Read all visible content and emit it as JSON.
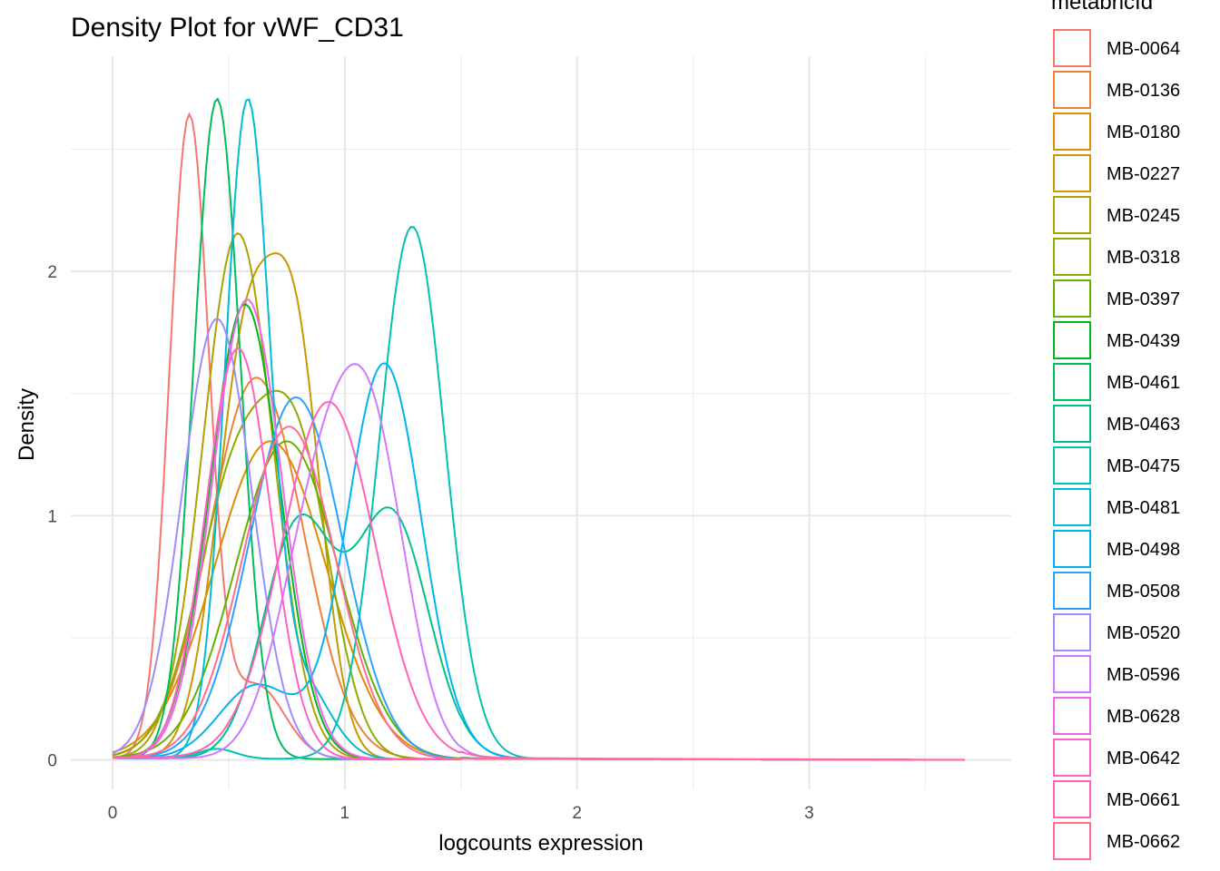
{
  "chart_data": {
    "type": "line",
    "title": "Density Plot for vWF_CD31",
    "xlabel": "logcounts expression",
    "ylabel": "Density",
    "xlim": [
      -0.18,
      3.87
    ],
    "ylim": [
      -0.12,
      2.88
    ],
    "x_ticks": [
      0,
      1,
      2,
      3
    ],
    "x_tick_labels": [
      "0",
      "1",
      "2",
      "3"
    ],
    "y_ticks": [
      0,
      1,
      2
    ],
    "y_tick_labels": [
      "0",
      "1",
      "2"
    ],
    "grid": true,
    "legend": {
      "title": "metabricId",
      "position": "right"
    },
    "series": [
      {
        "name": "MB-0064",
        "color": "#F8766D",
        "peaks": [
          [
            0.33,
            2.62,
            0.085
          ],
          [
            0.62,
            0.3,
            0.12
          ]
        ],
        "tail": 0.02
      },
      {
        "name": "MB-0136",
        "color": "#EC8239",
        "peaks": [
          [
            0.62,
            1.56,
            0.2
          ]
        ],
        "tail": 0.02
      },
      {
        "name": "MB-0180",
        "color": "#DB8E00",
        "peaks": [
          [
            0.68,
            1.3,
            0.24
          ]
        ],
        "tail": 0.02
      },
      {
        "name": "MB-0227",
        "color": "#C79800",
        "peaks": [
          [
            0.58,
            1.7,
            0.13
          ],
          [
            0.8,
            1.45,
            0.11
          ]
        ],
        "tail": 0.02
      },
      {
        "name": "MB-0245",
        "color": "#AEA200",
        "peaks": [
          [
            0.54,
            2.15,
            0.15
          ]
        ],
        "tail": 0.02
      },
      {
        "name": "MB-0318",
        "color": "#8FAA00",
        "peaks": [
          [
            0.55,
            1.2,
            0.18
          ],
          [
            0.82,
            0.95,
            0.14
          ]
        ],
        "tail": 0.02
      },
      {
        "name": "MB-0397",
        "color": "#64B200",
        "peaks": [
          [
            0.75,
            1.3,
            0.22
          ]
        ],
        "tail": 0.02
      },
      {
        "name": "MB-0439",
        "color": "#00B81B",
        "peaks": [
          [
            0.57,
            1.86,
            0.15
          ]
        ],
        "tail": 0.02
      },
      {
        "name": "MB-0461",
        "color": "#00BD5C",
        "peaks": [
          [
            0.45,
            2.7,
            0.1
          ]
        ],
        "tail": 0.02
      },
      {
        "name": "MB-0463",
        "color": "#00C08B",
        "peaks": [
          [
            0.8,
            0.95,
            0.15
          ],
          [
            1.2,
            1.0,
            0.16
          ]
        ],
        "tail": 0.02
      },
      {
        "name": "MB-0475",
        "color": "#00C1B2",
        "peaks": [
          [
            1.29,
            2.18,
            0.14
          ],
          [
            0.45,
            0.04,
            0.08
          ]
        ],
        "tail": 0.02
      },
      {
        "name": "MB-0481",
        "color": "#00BCD6",
        "peaks": [
          [
            0.58,
            2.66,
            0.095
          ],
          [
            0.82,
            0.3,
            0.12
          ]
        ],
        "tail": 0.02
      },
      {
        "name": "MB-0498",
        "color": "#00B3F2",
        "peaks": [
          [
            1.17,
            1.62,
            0.16
          ],
          [
            0.62,
            0.3,
            0.16
          ]
        ],
        "tail": 0.02
      },
      {
        "name": "MB-0508",
        "color": "#29A3FF",
        "peaks": [
          [
            0.79,
            1.48,
            0.2
          ]
        ],
        "tail": 0.02
      },
      {
        "name": "MB-0520",
        "color": "#9C8DFF",
        "peaks": [
          [
            0.45,
            1.8,
            0.15
          ]
        ],
        "tail": 0.02
      },
      {
        "name": "MB-0596",
        "color": "#D277FF",
        "peaks": [
          [
            0.88,
            0.95,
            0.16
          ],
          [
            1.12,
            1.2,
            0.15
          ]
        ],
        "tail": 0.02
      },
      {
        "name": "MB-0628",
        "color": "#F166E8",
        "peaks": [
          [
            0.58,
            1.88,
            0.15
          ]
        ],
        "tail": 0.02
      },
      {
        "name": "MB-0642",
        "color": "#FF61C7",
        "peaks": [
          [
            0.54,
            1.68,
            0.14
          ]
        ],
        "tail": 0.02
      },
      {
        "name": "MB-0661",
        "color": "#FF63B6",
        "peaks": [
          [
            0.93,
            1.46,
            0.2
          ]
        ],
        "tail": 0.03
      },
      {
        "name": "MB-0662",
        "color": "#FF6C91",
        "peaks": [
          [
            0.76,
            1.36,
            0.2
          ]
        ],
        "tail": 0.02
      }
    ]
  }
}
